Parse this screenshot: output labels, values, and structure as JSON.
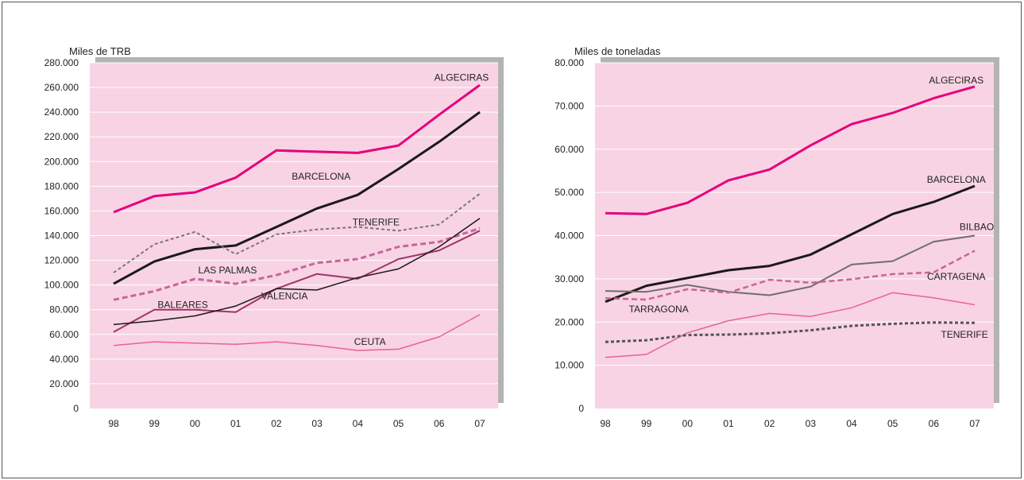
{
  "chart_data": [
    {
      "type": "line",
      "ylabel": "Miles de TRB",
      "ylim": [
        0,
        280000
      ],
      "y_ticks": [
        "0",
        "20.000",
        "40.000",
        "60.000",
        "80.000",
        "100.000",
        "120.000",
        "140.000",
        "160.000",
        "180.000",
        "200.000",
        "220.000",
        "240.000",
        "260.000",
        "280.000"
      ],
      "categories": [
        "98",
        "99",
        "00",
        "01",
        "02",
        "03",
        "04",
        "05",
        "06",
        "07"
      ],
      "grid": true,
      "background_color": "#f8d3e3",
      "series": [
        {
          "name": "ALGECIRAS",
          "color": "#e5007e",
          "width": 3,
          "dash": "",
          "values": [
            159000,
            172000,
            175000,
            187000,
            209000,
            208000,
            207000,
            213000,
            238000,
            262000
          ]
        },
        {
          "name": "BARCELONA",
          "color": "#1a1a1a",
          "width": 3,
          "dash": "",
          "values": [
            101000,
            119000,
            129000,
            132000,
            147000,
            162000,
            173000,
            194000,
            216000,
            240000
          ]
        },
        {
          "name": "TENERIFE",
          "color": "#777777",
          "width": 2,
          "dash": "4,3",
          "values": [
            110000,
            133000,
            143000,
            125000,
            141000,
            145000,
            147000,
            144000,
            149000,
            174000
          ]
        },
        {
          "name": "LAS PALMAS",
          "color": "#c8659a",
          "width": 3,
          "dash": "7,4",
          "values": [
            88000,
            95000,
            105000,
            101000,
            108000,
            118000,
            121000,
            131000,
            135000,
            146000
          ]
        },
        {
          "name": "BALEARES",
          "color": "#a1336a",
          "width": 2,
          "dash": "",
          "values": [
            62000,
            80000,
            80000,
            78000,
            97000,
            109000,
            105000,
            121000,
            128000,
            144000
          ]
        },
        {
          "name": "VALENCIA",
          "color": "#1a1a1a",
          "width": 1.5,
          "dash": "",
          "values": [
            68000,
            71000,
            75000,
            83000,
            97000,
            96000,
            106000,
            113000,
            131000,
            154000
          ]
        },
        {
          "name": "CEUTA",
          "color": "#e8609e",
          "width": 1.5,
          "dash": "",
          "values": [
            51000,
            54000,
            53000,
            52000,
            54000,
            51000,
            47000,
            48000,
            58000,
            76000
          ]
        }
      ],
      "labels": [
        {
          "text": "ALGECIRAS",
          "x": 8.55,
          "y": 268000
        },
        {
          "text": "BARCELONA",
          "x": 5.1,
          "y": 188000
        },
        {
          "text": "TENERIFE",
          "x": 6.45,
          "y": 151000
        },
        {
          "text": "LAS PALMAS",
          "x": 2.8,
          "y": 112000
        },
        {
          "text": "BALEARES",
          "x": 1.7,
          "y": 84000
        },
        {
          "text": "VALENCIA",
          "x": 4.2,
          "y": 91000
        },
        {
          "text": "CEUTA",
          "x": 6.3,
          "y": 54000
        }
      ]
    },
    {
      "type": "line",
      "ylabel": "Miles de toneladas",
      "ylim": [
        0,
        80000
      ],
      "y_ticks": [
        "0",
        "10.000",
        "20.000",
        "30.000",
        "40.000",
        "50.000",
        "60.000",
        "70.000",
        "80.000"
      ],
      "categories": [
        "98",
        "99",
        "00",
        "01",
        "02",
        "03",
        "04",
        "05",
        "06",
        "07"
      ],
      "grid": true,
      "background_color": "#f8d3e3",
      "series": [
        {
          "name": "ALGECIRAS",
          "color": "#e5007e",
          "width": 3,
          "dash": "",
          "values": [
            45200,
            45000,
            47600,
            52800,
            55300,
            60900,
            65800,
            68400,
            71800,
            74500
          ]
        },
        {
          "name": "BARCELONA",
          "color": "#1a1a1a",
          "width": 3,
          "dash": "",
          "values": [
            24700,
            28400,
            30200,
            32000,
            33000,
            35600,
            40300,
            45000,
            47800,
            51500
          ]
        },
        {
          "name": "BILBAO",
          "color": "#6e6e6e",
          "width": 2,
          "dash": "",
          "values": [
            27200,
            27000,
            28600,
            27000,
            26200,
            28200,
            33300,
            34100,
            38600,
            40000
          ]
        },
        {
          "name": "TARRAGONA",
          "color": "#c8659a",
          "width": 2.5,
          "dash": "7,4",
          "values": [
            25500,
            25200,
            27600,
            26800,
            29800,
            29100,
            29900,
            31100,
            31500,
            36500
          ]
        },
        {
          "name": "CARTAGENA",
          "color": "#e8609e",
          "width": 1.5,
          "dash": "",
          "values": [
            11800,
            12500,
            17500,
            20300,
            22000,
            21300,
            23300,
            26800,
            25600,
            24000
          ]
        },
        {
          "name": "TENERIFE",
          "color": "#555555",
          "width": 3,
          "dash": "4,3",
          "values": [
            15400,
            15800,
            17000,
            17100,
            17400,
            18100,
            19100,
            19600,
            19900,
            19800
          ]
        }
      ],
      "labels": [
        {
          "text": "ALGECIRAS",
          "x": 8.55,
          "y": 76000
        },
        {
          "text": "BARCELONA",
          "x": 8.55,
          "y": 53000
        },
        {
          "text": "BILBAO",
          "x": 9.05,
          "y": 42000
        },
        {
          "text": "TARRAGONA",
          "x": 1.3,
          "y": 23000
        },
        {
          "text": "CARTAGENA",
          "x": 8.55,
          "y": 30500
        },
        {
          "text": "TENERIFE",
          "x": 8.75,
          "y": 17100
        }
      ]
    }
  ]
}
